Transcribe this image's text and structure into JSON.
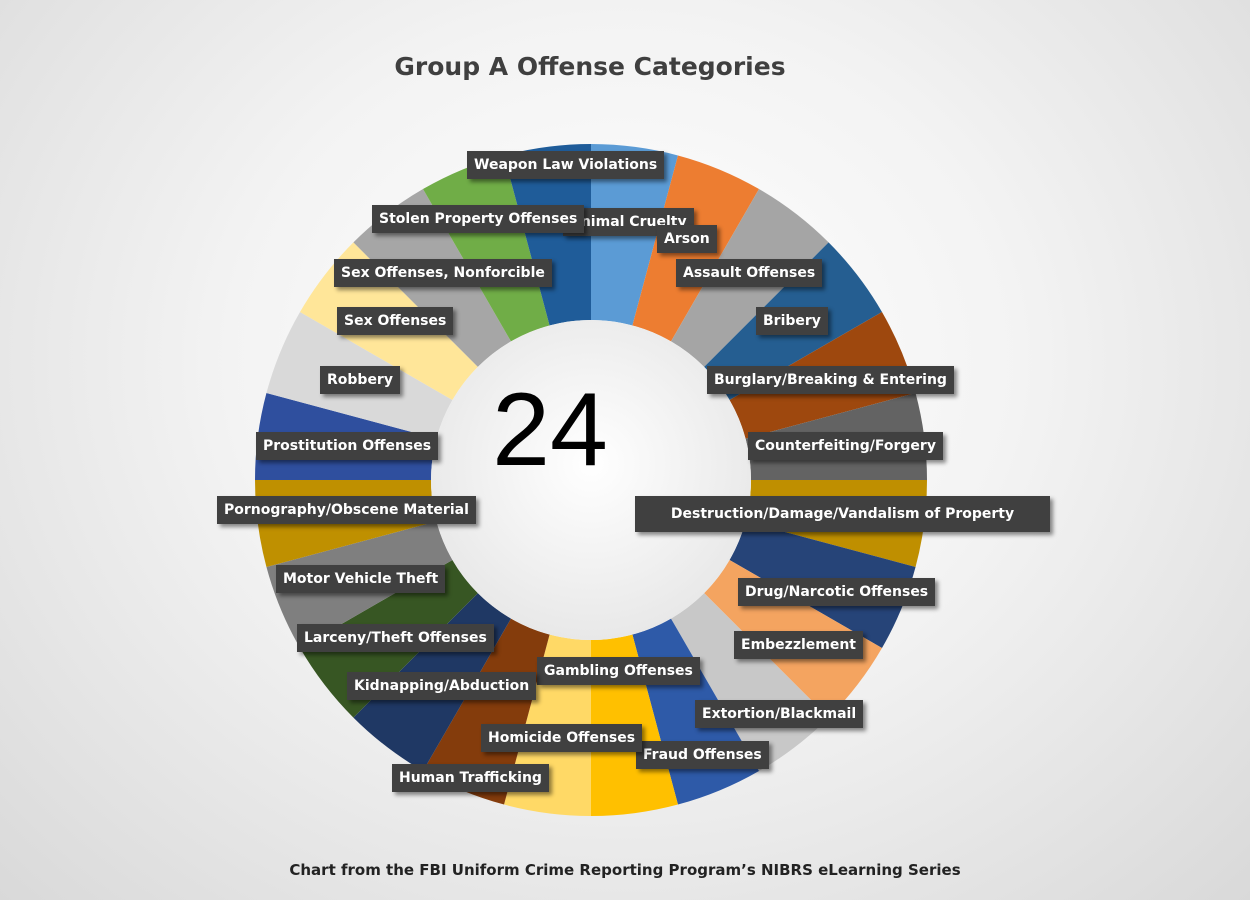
{
  "chart_data": {
    "type": "pie",
    "title": "Group A Offense Categories",
    "center_value": "24",
    "caption": "Chart from the FBI Uniform Crime Reporting Program’s NIBRS eLearning Series",
    "labels": [
      "Animal Cruelty",
      "Arson",
      "Assault Offenses",
      "Bribery",
      "Burglary/Breaking  & Entering",
      "Counterfeiting/Forgery",
      "Destruction/Damage/Vandalism  of Property",
      "Drug/Narcotic Offenses",
      "Embezzlement",
      "Extortion/Blackmail",
      "Fraud Offenses",
      "Gambling Offenses",
      "Homicide Offenses",
      "Human Trafficking",
      "Kidnapping/Abduction",
      "Larceny/Theft Offenses",
      "Motor Vehicle Theft",
      "Pornography/Obscene  Material",
      "Prostitution Offenses",
      "Robbery",
      "Sex Offenses",
      "Sex Offenses, Nonforcible",
      "Stolen Property Offenses",
      "Weapon Law Violations"
    ],
    "values": [
      1,
      1,
      1,
      1,
      1,
      1,
      1,
      1,
      1,
      1,
      1,
      1,
      1,
      1,
      1,
      1,
      1,
      1,
      1,
      1,
      1,
      1,
      1,
      1
    ],
    "colors": [
      "#5b9bd5",
      "#ed7d31",
      "#a5a5a5",
      "#255e91",
      "#9e480e",
      "#636363",
      "#bf8f00",
      "#264478",
      "#f4a460",
      "#c8c8c8",
      "#2e5aa8",
      "#ffc000",
      "#ffd966",
      "#843c0c",
      "#1f3864",
      "#375623",
      "#7f7f7f",
      "#bf9000",
      "#2f4f9e",
      "#d9d9d9",
      "#ffe699",
      "#a6a6a6",
      "#70ad47",
      "#1f5c99"
    ],
    "legend": "none"
  }
}
